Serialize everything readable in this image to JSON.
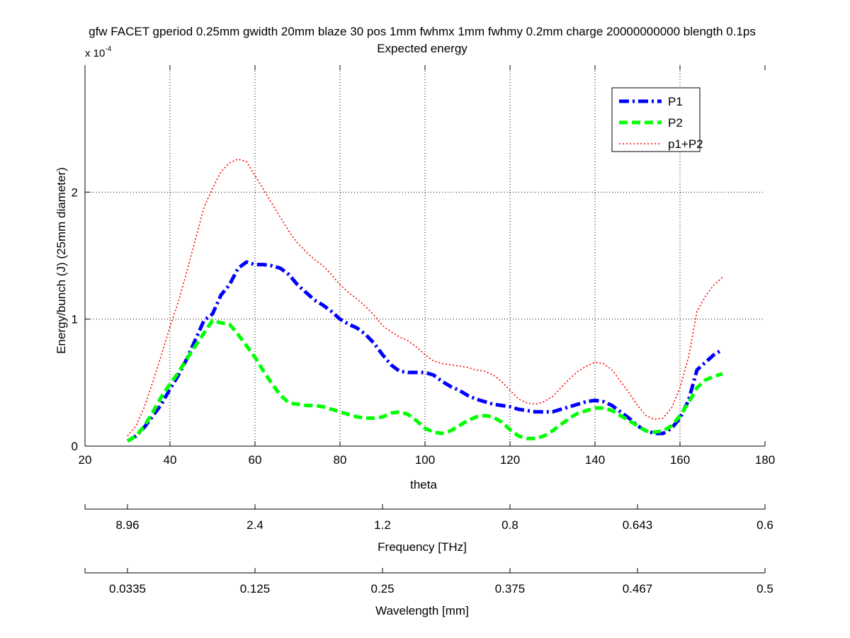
{
  "chart_data": {
    "type": "line",
    "title": "gfw FACET gperiod 0.25mm gwidth 20mm blaze 30 pos 1mm fwhmx 1mm fwhmy 0.2mm charge 20000000000 blength 0.1ps",
    "subtitle": "Expected energy",
    "xlabel": "theta",
    "ylabel": "Energy/bunch (J) (25mm diameter)",
    "y_multiplier_text": "x 10",
    "y_multiplier_exp": "-4",
    "xlim": [
      20,
      180
    ],
    "ylim": [
      0,
      3
    ],
    "x_ticks": [
      "20",
      "40",
      "60",
      "80",
      "100",
      "120",
      "140",
      "160",
      "180"
    ],
    "y_ticks": [
      "0",
      "1",
      "2"
    ],
    "grid": true,
    "legend_position": "top-right",
    "series": [
      {
        "name": "P1",
        "color": "#0000ff",
        "style": "dashdot",
        "x": [
          30,
          32,
          34,
          36,
          38,
          40,
          42,
          44,
          46,
          48,
          50,
          52,
          54,
          56,
          58,
          60,
          62,
          64,
          66,
          68,
          70,
          72,
          74,
          76,
          78,
          80,
          82,
          84,
          86,
          88,
          90,
          92,
          94,
          96,
          98,
          100,
          102,
          104,
          106,
          108,
          110,
          112,
          114,
          116,
          118,
          120,
          122,
          124,
          126,
          128,
          130,
          132,
          134,
          136,
          138,
          140,
          142,
          144,
          146,
          148,
          150,
          152,
          154,
          156,
          158,
          160,
          162,
          164,
          166,
          168,
          170
        ],
        "values": [
          0.04,
          0.08,
          0.15,
          0.24,
          0.33,
          0.45,
          0.56,
          0.69,
          0.84,
          0.99,
          1.04,
          1.19,
          1.27,
          1.4,
          1.45,
          1.43,
          1.43,
          1.42,
          1.4,
          1.35,
          1.27,
          1.21,
          1.15,
          1.11,
          1.06,
          1.0,
          0.96,
          0.93,
          0.88,
          0.81,
          0.72,
          0.64,
          0.59,
          0.58,
          0.58,
          0.58,
          0.56,
          0.51,
          0.47,
          0.44,
          0.4,
          0.37,
          0.35,
          0.33,
          0.32,
          0.31,
          0.29,
          0.28,
          0.27,
          0.27,
          0.27,
          0.29,
          0.31,
          0.33,
          0.35,
          0.36,
          0.35,
          0.32,
          0.27,
          0.22,
          0.16,
          0.12,
          0.1,
          0.1,
          0.14,
          0.22,
          0.36,
          0.6,
          0.66,
          0.72,
          0.76
        ]
      },
      {
        "name": "P2",
        "color": "#00ff00",
        "style": "dashed",
        "x": [
          30,
          32,
          34,
          36,
          38,
          40,
          42,
          44,
          46,
          48,
          50,
          52,
          54,
          56,
          58,
          60,
          62,
          64,
          66,
          68,
          70,
          72,
          74,
          76,
          78,
          80,
          82,
          84,
          86,
          88,
          90,
          92,
          94,
          96,
          98,
          100,
          102,
          104,
          106,
          108,
          110,
          112,
          114,
          116,
          118,
          120,
          122,
          124,
          126,
          128,
          130,
          132,
          134,
          136,
          138,
          140,
          142,
          144,
          146,
          148,
          150,
          152,
          154,
          156,
          158,
          160,
          162,
          164,
          166,
          168,
          170
        ],
        "values": [
          0.04,
          0.08,
          0.16,
          0.27,
          0.39,
          0.49,
          0.58,
          0.69,
          0.79,
          0.89,
          0.99,
          0.97,
          0.96,
          0.88,
          0.79,
          0.7,
          0.59,
          0.49,
          0.4,
          0.34,
          0.33,
          0.32,
          0.32,
          0.31,
          0.29,
          0.27,
          0.25,
          0.23,
          0.22,
          0.22,
          0.23,
          0.26,
          0.27,
          0.25,
          0.2,
          0.14,
          0.11,
          0.1,
          0.12,
          0.16,
          0.2,
          0.23,
          0.24,
          0.23,
          0.19,
          0.13,
          0.08,
          0.06,
          0.06,
          0.08,
          0.12,
          0.17,
          0.22,
          0.26,
          0.28,
          0.3,
          0.3,
          0.28,
          0.24,
          0.2,
          0.16,
          0.12,
          0.11,
          0.12,
          0.16,
          0.24,
          0.34,
          0.46,
          0.52,
          0.55,
          0.57
        ]
      },
      {
        "name": "p1+P2",
        "color": "#ff0000",
        "style": "dotted",
        "x": [
          30,
          32,
          34,
          36,
          38,
          40,
          42,
          44,
          46,
          48,
          50,
          52,
          54,
          56,
          58,
          60,
          62,
          64,
          66,
          68,
          70,
          72,
          74,
          76,
          78,
          80,
          82,
          84,
          86,
          88,
          90,
          92,
          94,
          96,
          98,
          100,
          102,
          104,
          106,
          108,
          110,
          112,
          114,
          116,
          118,
          120,
          122,
          124,
          126,
          128,
          130,
          132,
          134,
          136,
          138,
          140,
          142,
          144,
          146,
          148,
          150,
          152,
          154,
          156,
          158,
          160,
          162,
          164,
          166,
          168,
          170
        ],
        "values": [
          0.08,
          0.16,
          0.31,
          0.51,
          0.72,
          0.94,
          1.14,
          1.38,
          1.63,
          1.88,
          2.03,
          2.16,
          2.23,
          2.26,
          2.24,
          2.13,
          2.02,
          1.91,
          1.8,
          1.69,
          1.6,
          1.53,
          1.47,
          1.42,
          1.35,
          1.27,
          1.21,
          1.16,
          1.1,
          1.03,
          0.95,
          0.9,
          0.86,
          0.83,
          0.78,
          0.72,
          0.67,
          0.65,
          0.64,
          0.63,
          0.62,
          0.6,
          0.59,
          0.56,
          0.51,
          0.44,
          0.37,
          0.34,
          0.33,
          0.35,
          0.39,
          0.46,
          0.53,
          0.59,
          0.63,
          0.66,
          0.65,
          0.6,
          0.51,
          0.42,
          0.32,
          0.24,
          0.21,
          0.22,
          0.3,
          0.46,
          0.7,
          1.06,
          1.18,
          1.27,
          1.33
        ]
      }
    ],
    "secondary_axes": [
      {
        "label": "Frequency [THz]",
        "ticks": [
          {
            "theta": 20,
            "label": ""
          },
          {
            "theta": 30,
            "label": "8.96"
          },
          {
            "theta": 60,
            "label": "2.4"
          },
          {
            "theta": 90,
            "label": "1.2"
          },
          {
            "theta": 120,
            "label": "0.8"
          },
          {
            "theta": 150,
            "label": "0.643"
          },
          {
            "theta": 180,
            "label": "0.6"
          }
        ]
      },
      {
        "label": "Wavelength [mm]",
        "ticks": [
          {
            "theta": 20,
            "label": ""
          },
          {
            "theta": 30,
            "label": "0.0335"
          },
          {
            "theta": 60,
            "label": "0.125"
          },
          {
            "theta": 90,
            "label": "0.25"
          },
          {
            "theta": 120,
            "label": "0.375"
          },
          {
            "theta": 150,
            "label": "0.467"
          },
          {
            "theta": 180,
            "label": "0.5"
          }
        ]
      }
    ]
  }
}
